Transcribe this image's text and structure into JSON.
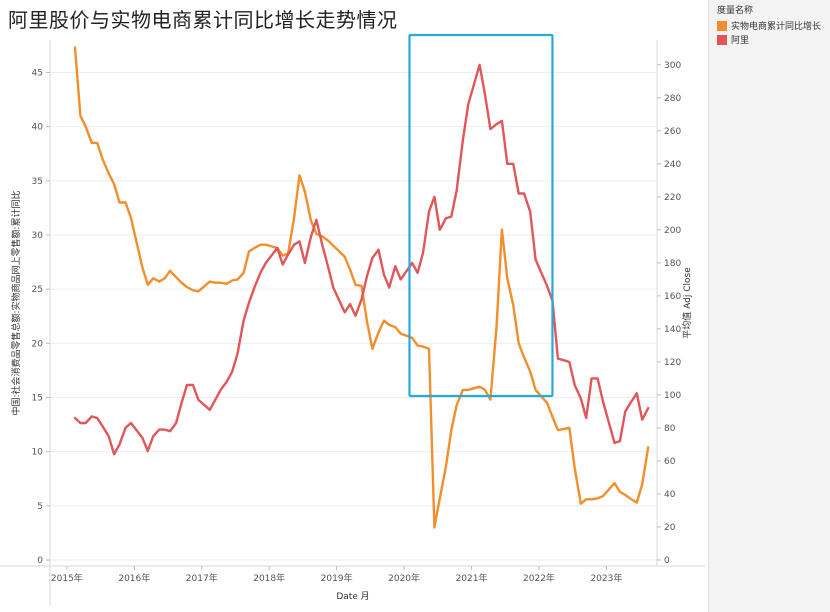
{
  "title": "阿里股价与实物电商累计同比增长走势情况",
  "legend": {
    "title": "度量名称",
    "items": [
      {
        "label": "实物电商累计同比增长",
        "color": "#f28e2b"
      },
      {
        "label": "阿里",
        "color": "#e15759"
      }
    ]
  },
  "highlight_color": "#29a8e0",
  "chart_data": {
    "type": "line",
    "xlabel": "Date 月",
    "ylabel_left": "中国:社会消费品零售总额:实物商品网上零售额:累计同比",
    "ylabel_right": "平均值 Adj Close",
    "x_ticks": [
      "2015年",
      "2016年",
      "2017年",
      "2018年",
      "2019年",
      "2020年",
      "2021年",
      "2022年",
      "2023年"
    ],
    "y_left_ticks": [
      0,
      5,
      10,
      15,
      20,
      25,
      30,
      35,
      40,
      45
    ],
    "y_right_ticks": [
      0,
      20,
      40,
      60,
      80,
      100,
      120,
      140,
      160,
      180,
      200,
      220,
      240,
      260,
      280,
      300
    ],
    "ylim_left": [
      0,
      48
    ],
    "ylim_right": [
      0,
      315
    ],
    "xlim": [
      2014.75,
      2023.75
    ],
    "series": [
      {
        "name": "实物电商累计同比增长",
        "axis": "left",
        "color": "#f28e2b",
        "points": [
          [
            2015.12,
            47.3
          ],
          [
            2015.2,
            41.0
          ],
          [
            2015.28,
            40.0
          ],
          [
            2015.37,
            38.5
          ],
          [
            2015.45,
            38.5
          ],
          [
            2015.53,
            37.0
          ],
          [
            2015.62,
            35.7
          ],
          [
            2015.7,
            34.7
          ],
          [
            2015.78,
            33.0
          ],
          [
            2015.87,
            33.0
          ],
          [
            2015.95,
            31.6
          ],
          [
            2016.12,
            27.0
          ],
          [
            2016.2,
            25.4
          ],
          [
            2016.28,
            26.0
          ],
          [
            2016.37,
            25.7
          ],
          [
            2016.45,
            26.0
          ],
          [
            2016.53,
            26.7
          ],
          [
            2016.62,
            26.1
          ],
          [
            2016.7,
            25.6
          ],
          [
            2016.78,
            25.2
          ],
          [
            2016.87,
            24.9
          ],
          [
            2016.95,
            24.8
          ],
          [
            2017.12,
            25.7
          ],
          [
            2017.2,
            25.6
          ],
          [
            2017.28,
            25.6
          ],
          [
            2017.37,
            25.5
          ],
          [
            2017.45,
            25.8
          ],
          [
            2017.53,
            25.9
          ],
          [
            2017.62,
            26.5
          ],
          [
            2017.7,
            28.5
          ],
          [
            2017.78,
            28.8
          ],
          [
            2017.87,
            29.1
          ],
          [
            2017.95,
            29.1
          ],
          [
            2018.12,
            28.8
          ],
          [
            2018.2,
            28.1
          ],
          [
            2018.28,
            28.3
          ],
          [
            2018.37,
            31.6
          ],
          [
            2018.45,
            35.5
          ],
          [
            2018.53,
            34.0
          ],
          [
            2018.62,
            31.3
          ],
          [
            2018.7,
            30.1
          ],
          [
            2018.78,
            29.9
          ],
          [
            2018.87,
            29.5
          ],
          [
            2018.95,
            29.0
          ],
          [
            2019.12,
            28.0
          ],
          [
            2019.2,
            26.8
          ],
          [
            2019.28,
            25.4
          ],
          [
            2019.37,
            25.3
          ],
          [
            2019.45,
            22.0
          ],
          [
            2019.53,
            19.5
          ],
          [
            2019.62,
            21.0
          ],
          [
            2019.7,
            22.1
          ],
          [
            2019.78,
            21.7
          ],
          [
            2019.87,
            21.5
          ],
          [
            2019.95,
            20.9
          ],
          [
            2020.12,
            20.5
          ],
          [
            2020.2,
            19.8
          ],
          [
            2020.28,
            19.7
          ],
          [
            2020.37,
            19.5
          ],
          [
            2020.45,
            3.0
          ],
          [
            2020.53,
            5.7
          ],
          [
            2020.62,
            8.6
          ],
          [
            2020.7,
            12.0
          ],
          [
            2020.78,
            14.3
          ],
          [
            2020.87,
            15.7
          ],
          [
            2020.95,
            15.7
          ],
          [
            2021.12,
            16.0
          ],
          [
            2021.2,
            15.7
          ],
          [
            2021.28,
            14.8
          ],
          [
            2021.37,
            21.5
          ],
          [
            2021.45,
            30.5
          ],
          [
            2021.53,
            26.0
          ],
          [
            2021.62,
            23.5
          ],
          [
            2021.7,
            20.0
          ],
          [
            2021.78,
            18.7
          ],
          [
            2021.87,
            17.4
          ],
          [
            2021.95,
            15.7
          ],
          [
            2022.12,
            14.5
          ],
          [
            2022.2,
            13.2
          ],
          [
            2022.28,
            12.0
          ],
          [
            2022.37,
            12.1
          ],
          [
            2022.45,
            12.2
          ],
          [
            2022.53,
            8.5
          ],
          [
            2022.62,
            5.2
          ],
          [
            2022.7,
            5.6
          ],
          [
            2022.78,
            5.6
          ],
          [
            2022.87,
            5.7
          ],
          [
            2022.95,
            5.9
          ],
          [
            2023.12,
            7.1
          ],
          [
            2023.2,
            6.3
          ],
          [
            2023.28,
            6.0
          ],
          [
            2023.37,
            5.6
          ],
          [
            2023.45,
            5.3
          ],
          [
            2023.53,
            7.0
          ],
          [
            2023.62,
            10.4
          ]
        ]
      },
      {
        "name": "阿里",
        "axis": "right",
        "color": "#e15759",
        "points": [
          [
            2015.12,
            86
          ],
          [
            2015.2,
            83
          ],
          [
            2015.28,
            83
          ],
          [
            2015.37,
            87
          ],
          [
            2015.45,
            86
          ],
          [
            2015.53,
            81
          ],
          [
            2015.62,
            75
          ],
          [
            2015.7,
            64
          ],
          [
            2015.78,
            70
          ],
          [
            2015.87,
            80
          ],
          [
            2015.95,
            83
          ],
          [
            2016.12,
            74
          ],
          [
            2016.2,
            66
          ],
          [
            2016.28,
            75
          ],
          [
            2016.37,
            79
          ],
          [
            2016.45,
            79
          ],
          [
            2016.53,
            78
          ],
          [
            2016.62,
            83
          ],
          [
            2016.7,
            95
          ],
          [
            2016.78,
            106
          ],
          [
            2016.87,
            106
          ],
          [
            2016.95,
            97
          ],
          [
            2017.12,
            91
          ],
          [
            2017.2,
            97
          ],
          [
            2017.28,
            103
          ],
          [
            2017.37,
            108
          ],
          [
            2017.45,
            114
          ],
          [
            2017.53,
            125
          ],
          [
            2017.62,
            145
          ],
          [
            2017.7,
            156
          ],
          [
            2017.78,
            165
          ],
          [
            2017.87,
            174
          ],
          [
            2017.95,
            180
          ],
          [
            2018.12,
            189
          ],
          [
            2018.2,
            179
          ],
          [
            2018.28,
            185
          ],
          [
            2018.37,
            191
          ],
          [
            2018.45,
            193
          ],
          [
            2018.53,
            180
          ],
          [
            2018.62,
            196
          ],
          [
            2018.7,
            206
          ],
          [
            2018.78,
            192
          ],
          [
            2018.87,
            178
          ],
          [
            2018.95,
            165
          ],
          [
            2019.12,
            150
          ],
          [
            2019.2,
            155
          ],
          [
            2019.28,
            148
          ],
          [
            2019.37,
            158
          ],
          [
            2019.45,
            172
          ],
          [
            2019.53,
            183
          ],
          [
            2019.62,
            188
          ],
          [
            2019.7,
            173
          ],
          [
            2019.78,
            165
          ],
          [
            2019.87,
            178
          ],
          [
            2019.95,
            170
          ],
          [
            2020.12,
            180
          ],
          [
            2020.2,
            174
          ],
          [
            2020.28,
            186
          ],
          [
            2020.37,
            211
          ],
          [
            2020.45,
            220
          ],
          [
            2020.53,
            200
          ],
          [
            2020.62,
            207
          ],
          [
            2020.7,
            208
          ],
          [
            2020.78,
            224
          ],
          [
            2020.87,
            254
          ],
          [
            2020.95,
            276
          ],
          [
            2021.12,
            300
          ],
          [
            2021.2,
            282
          ],
          [
            2021.28,
            261
          ],
          [
            2021.37,
            264
          ],
          [
            2021.45,
            266
          ],
          [
            2021.53,
            240
          ],
          [
            2021.62,
            240
          ],
          [
            2021.7,
            222
          ],
          [
            2021.78,
            222
          ],
          [
            2021.87,
            211
          ],
          [
            2021.95,
            182
          ],
          [
            2022.12,
            166
          ],
          [
            2022.2,
            157
          ],
          [
            2022.28,
            122
          ],
          [
            2022.37,
            121
          ],
          [
            2022.45,
            120
          ],
          [
            2022.53,
            106
          ],
          [
            2022.62,
            98
          ],
          [
            2022.7,
            86
          ],
          [
            2022.78,
            110
          ],
          [
            2022.87,
            110
          ],
          [
            2022.95,
            96
          ],
          [
            2023.12,
            71
          ],
          [
            2023.2,
            72
          ],
          [
            2023.28,
            90
          ],
          [
            2023.37,
            96
          ],
          [
            2023.45,
            101
          ],
          [
            2023.53,
            85
          ],
          [
            2023.62,
            92
          ]
        ]
      }
    ]
  }
}
